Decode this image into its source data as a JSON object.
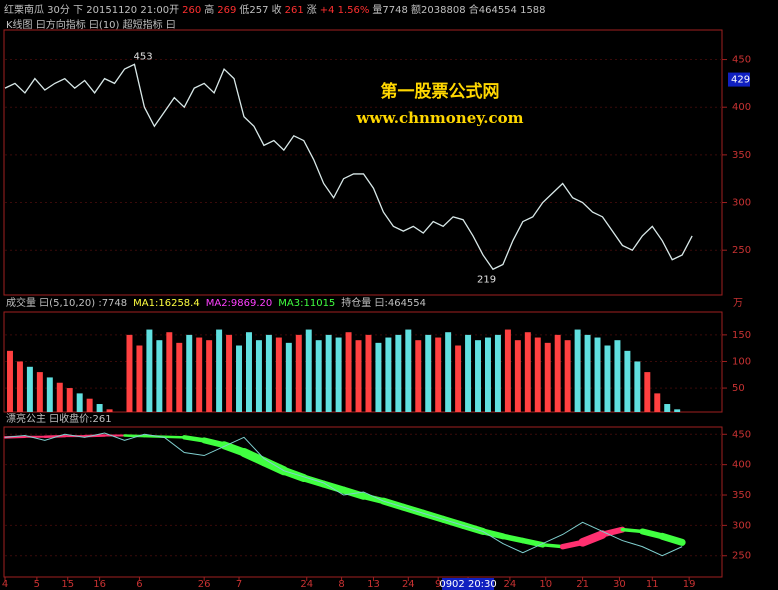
{
  "header": {
    "items": [
      {
        "text": "红栗南瓜 30分 下 20151120 21:00开",
        "color": "#c0c0c0"
      },
      {
        "text": "260",
        "color": "#ff3030"
      },
      {
        "text": "高",
        "color": "#c0c0c0"
      },
      {
        "text": "269",
        "color": "#ff3030"
      },
      {
        "text": "低257 收",
        "color": "#c0c0c0"
      },
      {
        "text": "261",
        "color": "#ff3030"
      },
      {
        "text": "涨",
        "color": "#c0c0c0"
      },
      {
        "text": "+4 1.56%",
        "color": "#ff3030"
      },
      {
        "text": "量7748 额2038808 合464554 1588",
        "color": "#c0c0c0"
      }
    ]
  },
  "chart_data": [
    {
      "type": "line",
      "title": "K线图 曰方向指标 曰(10) 超短指标 曰",
      "color": "#d8e8e8",
      "x": [
        0,
        1,
        2,
        3,
        4,
        5,
        6,
        7,
        8,
        9,
        10,
        11,
        12,
        13,
        14,
        15,
        16,
        17,
        18,
        19,
        20,
        21,
        22,
        23,
        24,
        25,
        26,
        27,
        28,
        29,
        30,
        31,
        32,
        33,
        34,
        35,
        36,
        37,
        38,
        39,
        40,
        41,
        42,
        43,
        44,
        45,
        46,
        47,
        48,
        49,
        50,
        51,
        52,
        53,
        54,
        55,
        56,
        57,
        58,
        59,
        60,
        61,
        62,
        63,
        64,
        65,
        66,
        67,
        68,
        69
      ],
      "values": [
        420,
        425,
        415,
        430,
        418,
        425,
        430,
        420,
        428,
        415,
        430,
        425,
        440,
        445,
        400,
        380,
        395,
        410,
        400,
        420,
        425,
        415,
        440,
        430,
        390,
        380,
        360,
        365,
        355,
        370,
        365,
        345,
        320,
        305,
        325,
        330,
        330,
        315,
        290,
        275,
        270,
        275,
        268,
        280,
        275,
        285,
        282,
        265,
        245,
        230,
        235,
        260,
        280,
        285,
        300,
        310,
        320,
        305,
        300,
        290,
        285,
        270,
        255,
        250,
        265,
        275,
        260,
        240,
        245,
        265
      ],
      "xlim": [
        0,
        72
      ],
      "ylim": [
        203,
        481
      ],
      "yticks": [
        250,
        300,
        350,
        400,
        450
      ],
      "annotations": [
        {
          "text": "453",
          "x": 12.5,
          "y": 453
        },
        {
          "text": "219",
          "x": 47,
          "y": 219
        },
        {
          "text": "429",
          "x": 72,
          "y": 429
        }
      ],
      "watermark": [
        "第一股票公式网",
        "www.chnmoney.com"
      ]
    },
    {
      "type": "bar",
      "title": "成交量 曰(5,10,20) :7748",
      "ma_labels": [
        {
          "text": "MA1:16258.4",
          "color": "#ffff40"
        },
        {
          "text": "MA2:9869.20",
          "color": "#ff40ff"
        },
        {
          "text": "MA3:11015",
          "color": "#40ff40"
        },
        {
          "text": "持仓量 曰:464554",
          "color": "#c0c0c0"
        }
      ],
      "unit": "万",
      "up_color": "#ff4040",
      "down_color": "#60e0e0",
      "values": [
        120,
        100,
        90,
        80,
        70,
        60,
        50,
        40,
        30,
        20,
        10,
        5,
        150,
        130,
        160,
        140,
        155,
        135,
        150,
        145,
        140,
        160,
        150,
        130,
        155,
        140,
        150,
        145,
        135,
        150,
        160,
        140,
        150,
        145,
        155,
        140,
        150,
        135,
        145,
        150,
        160,
        140,
        150,
        145,
        155,
        130,
        150,
        140,
        145,
        150,
        160,
        140,
        155,
        145,
        135,
        150,
        140,
        160,
        150,
        145,
        130,
        140,
        120,
        100,
        80,
        40,
        20,
        10,
        5,
        5
      ],
      "ylim": [
        5,
        193
      ],
      "yticks": [
        50,
        100,
        150
      ]
    },
    {
      "type": "line",
      "title": "漂亮公主 曰收盘价:261",
      "line_color": "#80d0d0",
      "up_color": "#ff3070",
      "down_color": "#40ff40",
      "x": [
        0,
        2,
        4,
        6,
        8,
        10,
        12,
        14,
        16,
        18,
        20,
        22,
        24,
        26,
        28,
        30,
        32,
        34,
        36,
        38,
        40,
        42,
        44,
        46,
        48,
        50,
        52,
        54,
        56,
        58,
        60,
        62,
        64,
        66,
        68
      ],
      "values": [
        445,
        448,
        440,
        450,
        445,
        452,
        440,
        450,
        445,
        420,
        415,
        430,
        445,
        410,
        390,
        380,
        370,
        350,
        355,
        340,
        330,
        320,
        310,
        300,
        290,
        270,
        255,
        270,
        285,
        305,
        290,
        275,
        265,
        250,
        265
      ],
      "ribbon": [
        445,
        446,
        446,
        447,
        447,
        448,
        448,
        447,
        446,
        445,
        440,
        432,
        420,
        405,
        390,
        378,
        368,
        358,
        348,
        340,
        330,
        320,
        310,
        300,
        290,
        282,
        275,
        268,
        265,
        272,
        285,
        293,
        290,
        282,
        272
      ],
      "xlim": [
        0,
        72
      ],
      "ylim": [
        215,
        462
      ],
      "yticks": [
        250,
        300,
        350,
        400,
        450
      ],
      "xticks": [
        {
          "value": 0,
          "label": "4"
        },
        {
          "value": 3.2,
          "label": "5"
        },
        {
          "value": 6.3,
          "label": "15"
        },
        {
          "value": 9.5,
          "label": "16"
        },
        {
          "value": 13.5,
          "label": "6"
        },
        {
          "value": 20,
          "label": "26"
        },
        {
          "value": 23.5,
          "label": "7"
        },
        {
          "value": 30.3,
          "label": "24"
        },
        {
          "value": 33.8,
          "label": "8"
        },
        {
          "value": 37,
          "label": "13"
        },
        {
          "value": 40.5,
          "label": "24"
        },
        {
          "value": 43.5,
          "label": "9"
        },
        {
          "value": 46.5,
          "label": "0902 20:30"
        },
        {
          "value": 50.7,
          "label": "24"
        },
        {
          "value": 54.3,
          "label": "10"
        },
        {
          "value": 58,
          "label": "21"
        },
        {
          "value": 61.7,
          "label": "30"
        },
        {
          "value": 65,
          "label": "11"
        },
        {
          "value": 68.7,
          "label": "19"
        }
      ]
    }
  ]
}
